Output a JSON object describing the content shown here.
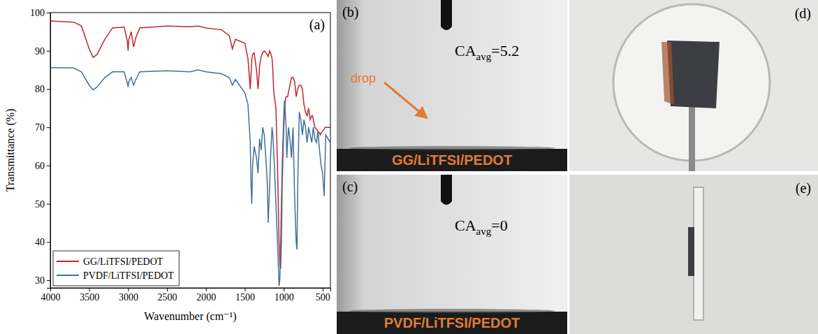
{
  "chart_data": {
    "type": "line",
    "panel_label": "(a)",
    "x_label": "Wavenumber (cm⁻¹)",
    "y_label": "Transmittance (%)",
    "x": [
      4000,
      3700,
      3600,
      3500,
      3450,
      3400,
      3300,
      3200,
      3050,
      3010,
      3000,
      2990,
      2960,
      2930,
      2900,
      2850,
      2500,
      2200,
      2100,
      2000,
      1800,
      1700,
      1660,
      1620,
      1500,
      1460,
      1430,
      1420,
      1410,
      1400,
      1380,
      1350,
      1330,
      1310,
      1290,
      1270,
      1250,
      1230,
      1210,
      1200,
      1180,
      1170,
      1150,
      1140,
      1130,
      1120,
      1100,
      1080,
      1060,
      1050,
      1040,
      1030,
      1020,
      1000,
      990,
      980,
      970,
      960,
      950,
      940,
      920,
      900,
      880,
      860,
      840,
      830,
      820,
      800,
      780,
      760,
      740,
      720,
      700,
      680,
      660,
      640,
      630,
      620,
      600,
      580,
      560,
      540,
      530,
      520,
      500,
      480,
      470,
      460,
      400
    ],
    "series": [
      {
        "name": "GG/LiTFSI/PEDOT",
        "color": "#c1272d",
        "values": [
          97.8,
          97.5,
          96.5,
          90.5,
          88.3,
          89,
          93,
          96,
          96.2,
          92.5,
          90,
          93,
          95,
          91,
          93.5,
          96,
          96.5,
          96.3,
          96.5,
          96,
          95.5,
          94,
          90.5,
          93,
          92,
          88,
          80,
          84,
          88,
          89,
          89.5,
          85,
          80,
          86,
          88.5,
          89.5,
          90,
          89.5,
          89,
          88.5,
          90,
          89.5,
          88,
          85,
          80,
          78,
          75,
          60,
          40,
          34,
          33,
          40,
          55,
          70,
          74,
          77,
          78,
          78,
          78,
          79,
          81,
          83,
          83,
          82,
          78,
          79,
          80,
          81,
          81,
          80,
          76,
          74,
          73,
          75,
          72,
          73,
          73,
          72,
          70,
          69.5,
          69,
          68.5,
          68,
          68.5,
          69,
          69.5,
          70,
          70,
          70
        ]
      },
      {
        "name": "PVDF/LiTFSI/PEDOT",
        "color": "#41719c",
        "values": [
          85.6,
          85.5,
          84.5,
          81,
          79.8,
          80.5,
          83,
          84.5,
          84.5,
          81.5,
          80.5,
          82,
          83,
          81,
          82.5,
          84.5,
          84.8,
          84.5,
          85,
          84.5,
          84,
          83,
          81,
          82.5,
          79,
          76,
          66,
          55,
          50,
          60,
          65,
          62,
          58,
          67,
          64,
          70,
          68,
          62,
          55,
          45,
          55,
          62,
          70,
          68,
          64,
          60,
          50,
          40,
          28.5,
          30,
          40,
          50,
          60,
          73,
          77,
          74,
          70,
          62,
          66,
          70,
          67,
          62,
          70,
          52,
          40,
          38,
          55,
          74,
          72,
          68,
          72,
          70,
          66,
          70,
          68,
          66,
          68,
          70,
          67,
          66,
          69,
          64,
          62,
          60,
          58,
          52,
          60,
          68,
          66
        ]
      }
    ],
    "xlim": [
      4000,
      400
    ],
    "xticks": [
      4000,
      3500,
      3000,
      2500,
      2000,
      1500,
      1000,
      500
    ],
    "ylim": [
      28,
      100
    ],
    "yticks": [
      30,
      40,
      50,
      60,
      70,
      80,
      90,
      100
    ],
    "grid": false,
    "legend": "lower left"
  },
  "panels": [
    {
      "label": "(b)",
      "symbol": "CA",
      "subscript": "avg",
      "relation": "=",
      "value": 5.2,
      "annotation": "drop",
      "sample": "GG/LiTFSI/PEDOT"
    },
    {
      "label": "(c)",
      "symbol": "CA",
      "subscript": "avg",
      "relation": "=",
      "value": 0,
      "sample": "PVDF/LiTFSI/PEDOT"
    },
    {
      "label": "(d)"
    },
    {
      "label": "(e)"
    }
  ]
}
